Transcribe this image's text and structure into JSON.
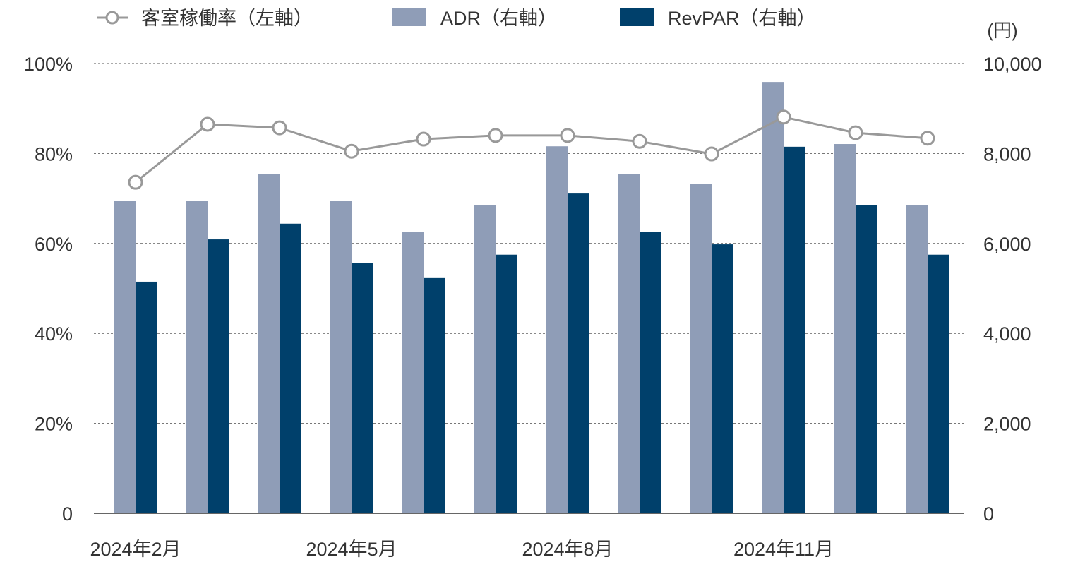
{
  "chart_data": {
    "type": "bar+line",
    "legend": [
      {
        "name": "客室稼働率（左軸）",
        "kind": "line",
        "color": "#999999"
      },
      {
        "name": "ADR（右軸）",
        "kind": "bar",
        "color": "#8f9db7"
      },
      {
        "name": "RevPAR（右軸）",
        "kind": "bar",
        "color": "#00406b"
      }
    ],
    "legend_placement": "top",
    "y_left": {
      "range": [
        0,
        100
      ],
      "ticks": [
        0,
        20,
        40,
        60,
        80,
        100
      ],
      "tick_labels": [
        "0",
        "20%",
        "40%",
        "60%",
        "80%",
        "100%"
      ]
    },
    "y_right": {
      "unit_label": "(円)",
      "range": [
        0,
        10000
      ],
      "ticks": [
        0,
        2000,
        4000,
        6000,
        8000,
        10000
      ],
      "tick_labels": [
        "0",
        "2,000",
        "4,000",
        "6,000",
        "8,000",
        "10,000"
      ]
    },
    "x_tick_labels": [
      {
        "index": 0,
        "label": "2024年2月"
      },
      {
        "index": 3,
        "label": "2024年5月"
      },
      {
        "index": 6,
        "label": "2024年8月"
      },
      {
        "index": 9,
        "label": "2024年11月"
      }
    ],
    "grid": "horizontal dotted",
    "series": [
      {
        "name": "客室稼働率（左軸）",
        "axis": "left",
        "values": [
          73.6,
          86.5,
          85.7,
          80.5,
          83.2,
          84.0,
          84.0,
          82.7,
          79.9,
          88.1,
          84.6,
          83.4
        ]
      },
      {
        "name": "ADR（右軸）",
        "axis": "right",
        "values": [
          6940,
          6940,
          7540,
          6940,
          6260,
          6860,
          8160,
          7540,
          7320,
          9590,
          8210,
          6860
        ]
      },
      {
        "name": "RevPAR（右軸）",
        "axis": "right",
        "values": [
          5150,
          6090,
          6440,
          5570,
          5230,
          5750,
          7110,
          6260,
          5980,
          8150,
          6860,
          5750
        ]
      }
    ]
  }
}
